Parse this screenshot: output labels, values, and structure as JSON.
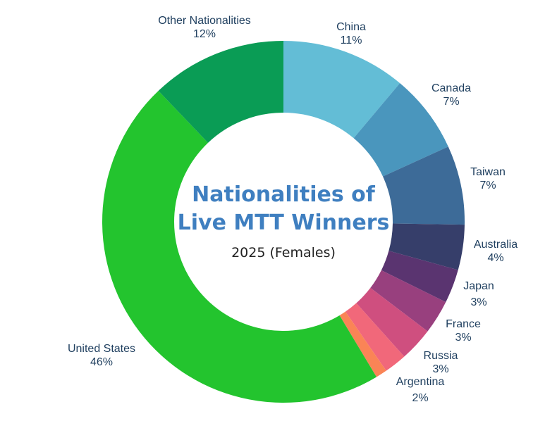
{
  "chart_data": {
    "type": "pie",
    "variant": "donut",
    "title_lines": [
      "Nationalities of",
      "Live MTT Winners"
    ],
    "subtitle": "2025 (Females)",
    "slices": [
      {
        "name": "China",
        "value": 11,
        "label": "11%",
        "color": "#63bdd6"
      },
      {
        "name": "Canada",
        "value": 7,
        "label": "7%",
        "color": "#4a96bd"
      },
      {
        "name": "Taiwan",
        "value": 7,
        "label": "7%",
        "color": "#3d6b98"
      },
      {
        "name": "Australia",
        "value": 4,
        "label": "4%",
        "color": "#363e6a"
      },
      {
        "name": "Japan",
        "value": 3,
        "label": "3%",
        "color": "#5a3470"
      },
      {
        "name": "France",
        "value": 3,
        "label": "3%",
        "color": "#98407e"
      },
      {
        "name": "Russia",
        "value": 3,
        "label": "3%",
        "color": "#cf4f7f"
      },
      {
        "name": "Argentina",
        "value": 2,
        "label": "2%",
        "color": "#f1687a"
      },
      {
        "name": "(unlabeled)",
        "value": 1,
        "label": "",
        "color": "#fa8456"
      },
      {
        "name": "United States",
        "value": 46,
        "label": "46%",
        "color": "#23c42e"
      },
      {
        "name": "Other Nationalities",
        "value": 12,
        "label": "12%",
        "color": "#0a9c55"
      }
    ],
    "start": "top (12 o'clock)",
    "direction": "clockwise"
  }
}
